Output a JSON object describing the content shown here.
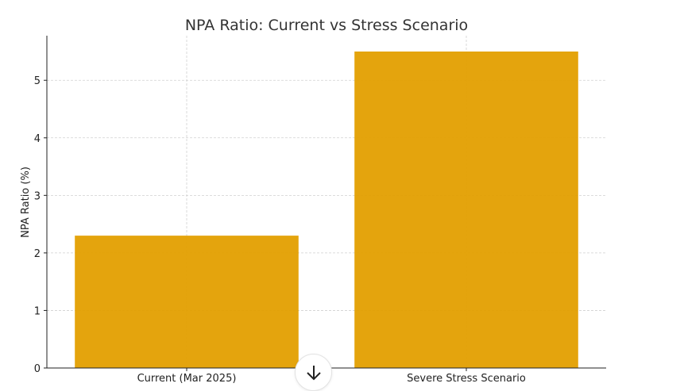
{
  "chart_data": {
    "type": "bar",
    "title": "NPA Ratio: Current vs Stress Scenario",
    "xlabel": "",
    "ylabel": "NPA Ratio (%)",
    "categories": [
      "Current (Mar 2025)",
      "Severe Stress Scenario"
    ],
    "values": [
      2.3,
      5.5
    ],
    "ylim": [
      0,
      5.775
    ],
    "yticks": [
      0,
      1,
      2,
      3,
      4,
      5
    ],
    "grid": true,
    "bar_color": "#e39f00"
  },
  "ui": {
    "scroll_down_icon": "arrow-down-icon"
  }
}
